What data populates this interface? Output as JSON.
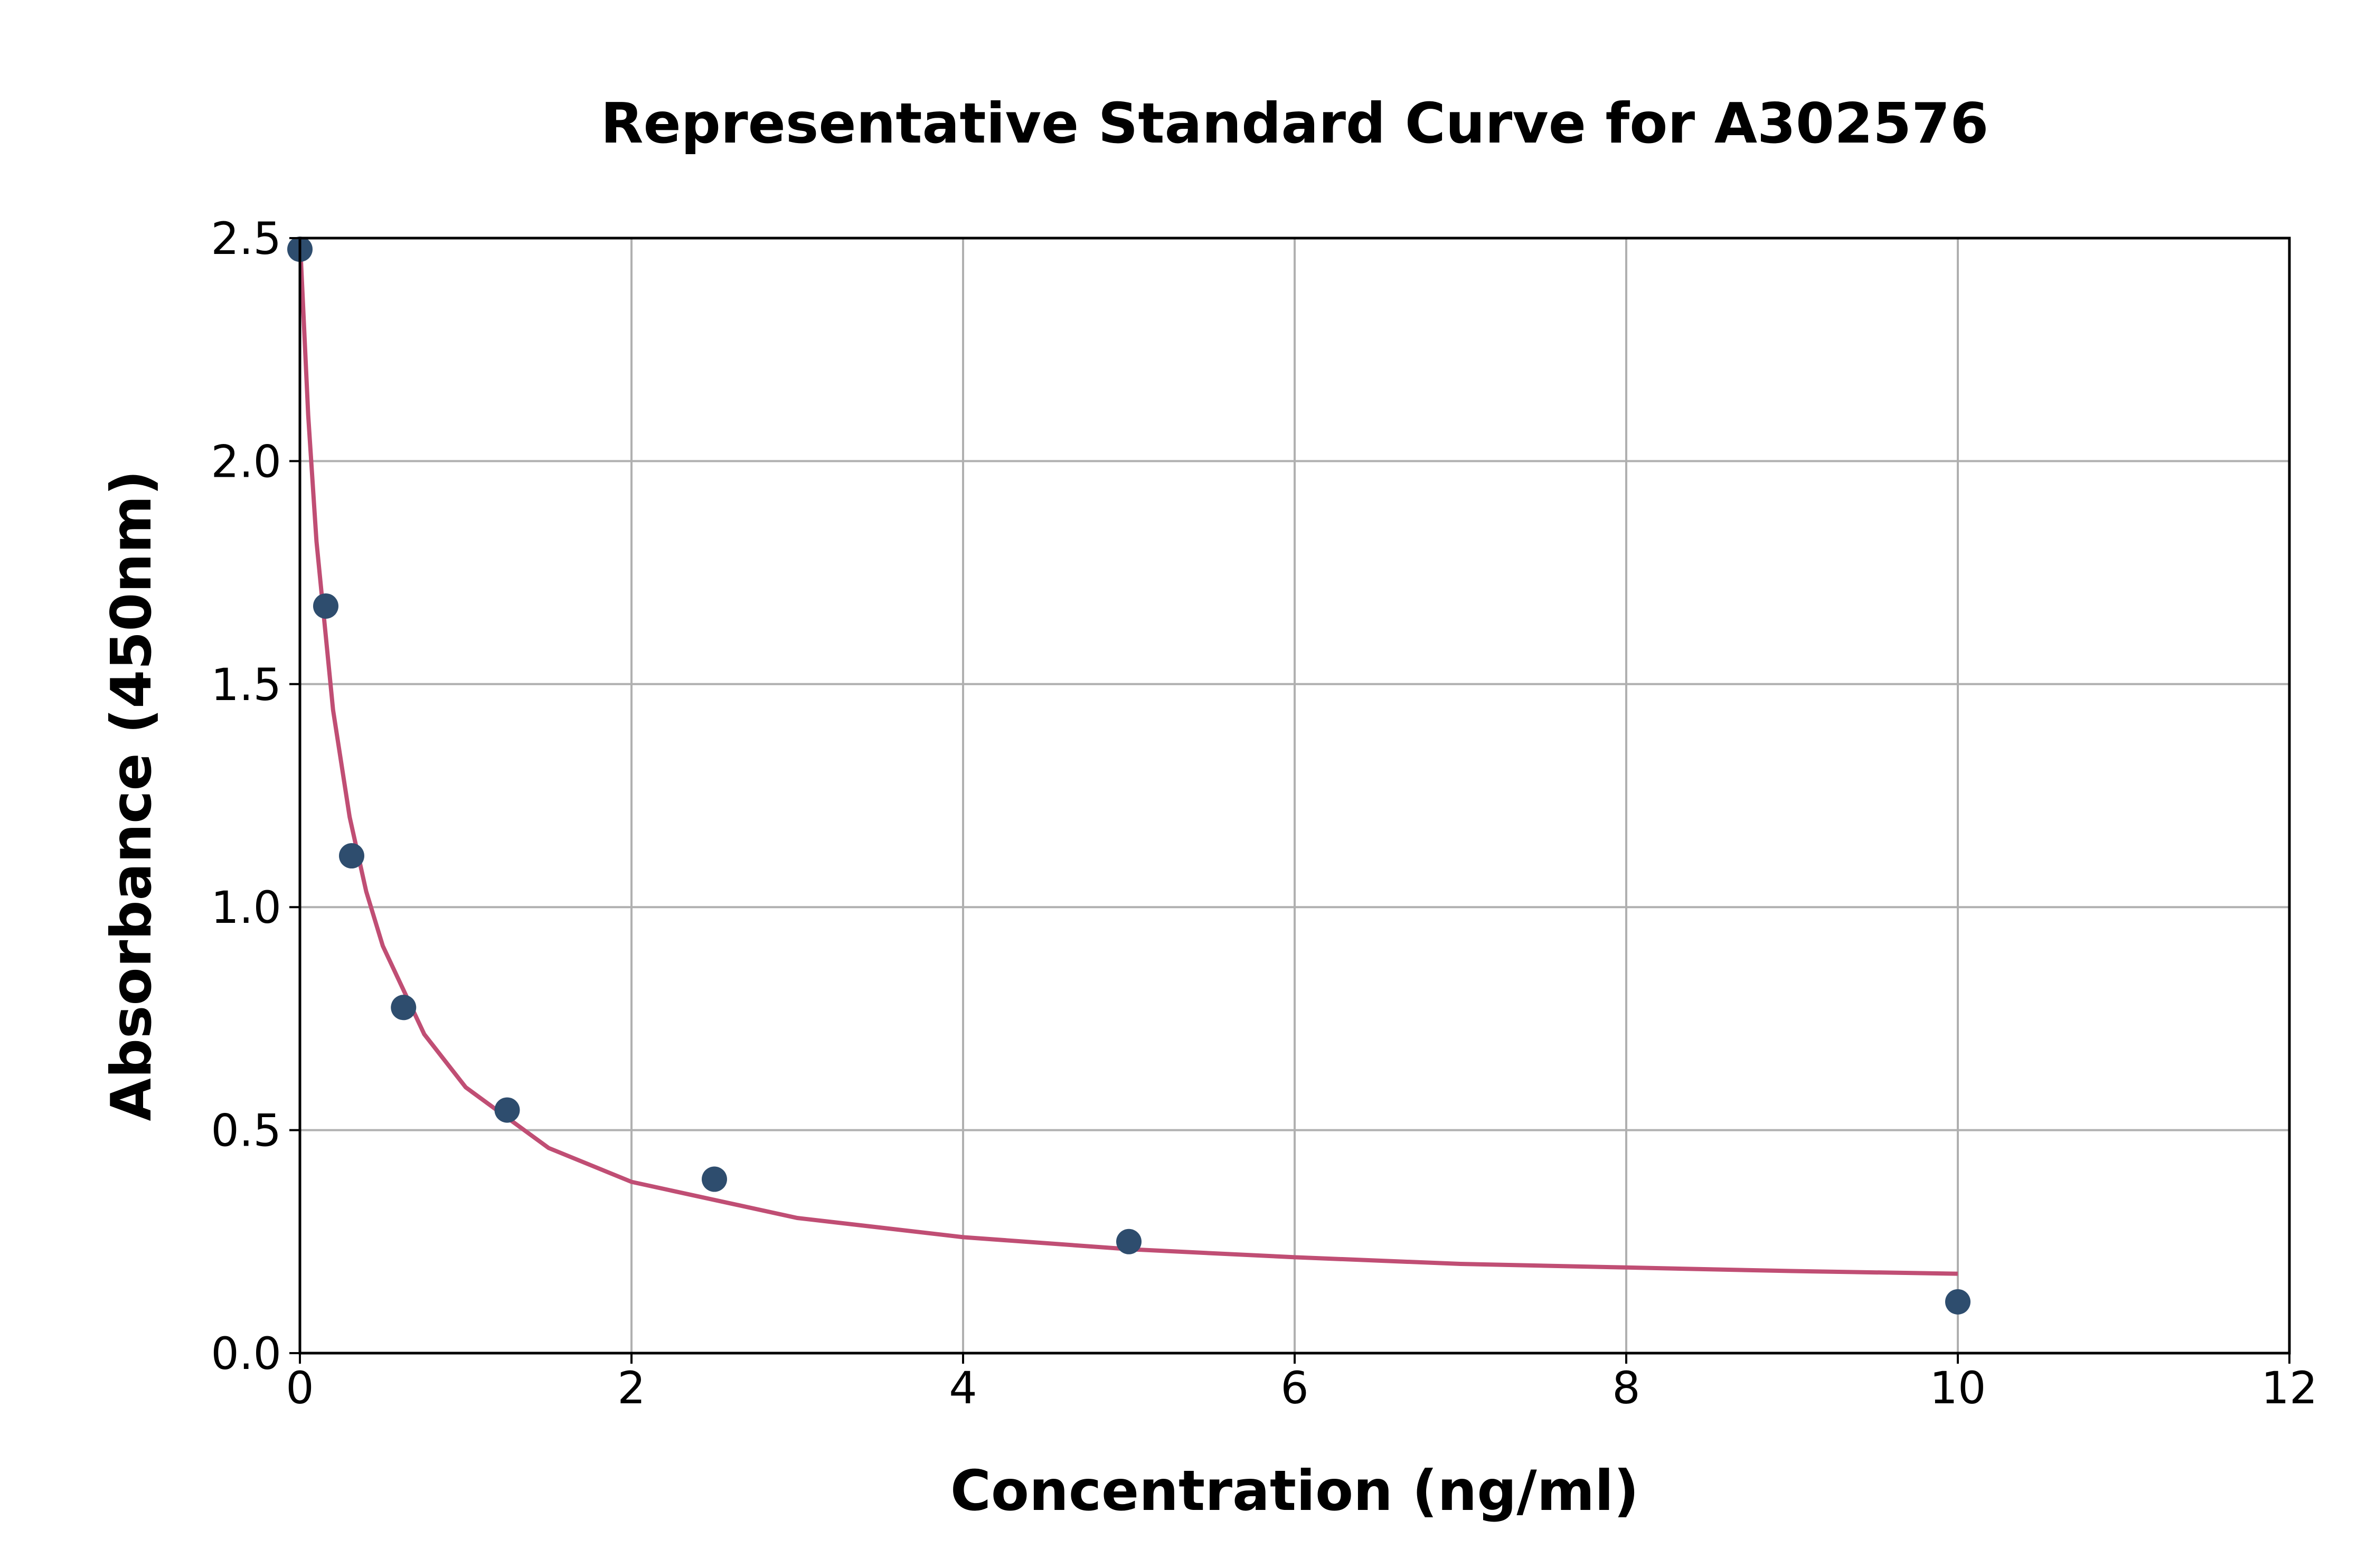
{
  "chart_data": {
    "type": "scatter",
    "title": "Representative Standard Curve for A302576",
    "xlabel": "Concentration (ng/ml)",
    "ylabel": "Absorbance (450nm)",
    "xlim": [
      0,
      12
    ],
    "ylim": [
      0,
      2.5
    ],
    "xticks": [
      "0",
      "2",
      "4",
      "6",
      "8",
      "10",
      "12"
    ],
    "yticks": [
      "0.0",
      "0.5",
      "1.0",
      "1.5",
      "2.0",
      "2.5"
    ],
    "grid": true,
    "points": {
      "x": [
        0,
        0.156,
        0.312,
        0.625,
        1.25,
        2.5,
        5,
        10
      ],
      "y": [
        2.475,
        1.675,
        1.115,
        0.775,
        0.545,
        0.39,
        0.25,
        0.115
      ],
      "color": "#2e4d6e"
    },
    "fit_curve": {
      "x": [
        0,
        0.05,
        0.1,
        0.2,
        0.3,
        0.4,
        0.5,
        0.75,
        1,
        1.5,
        2,
        3,
        4,
        5,
        6,
        7,
        8,
        9,
        10
      ],
      "y": [
        2.5,
        2.103,
        1.82,
        1.442,
        1.202,
        1.035,
        0.913,
        0.715,
        0.596,
        0.46,
        0.384,
        0.303,
        0.26,
        0.233,
        0.215,
        0.2,
        0.192,
        0.184,
        0.178
      ],
      "color": "#c04e74"
    }
  }
}
